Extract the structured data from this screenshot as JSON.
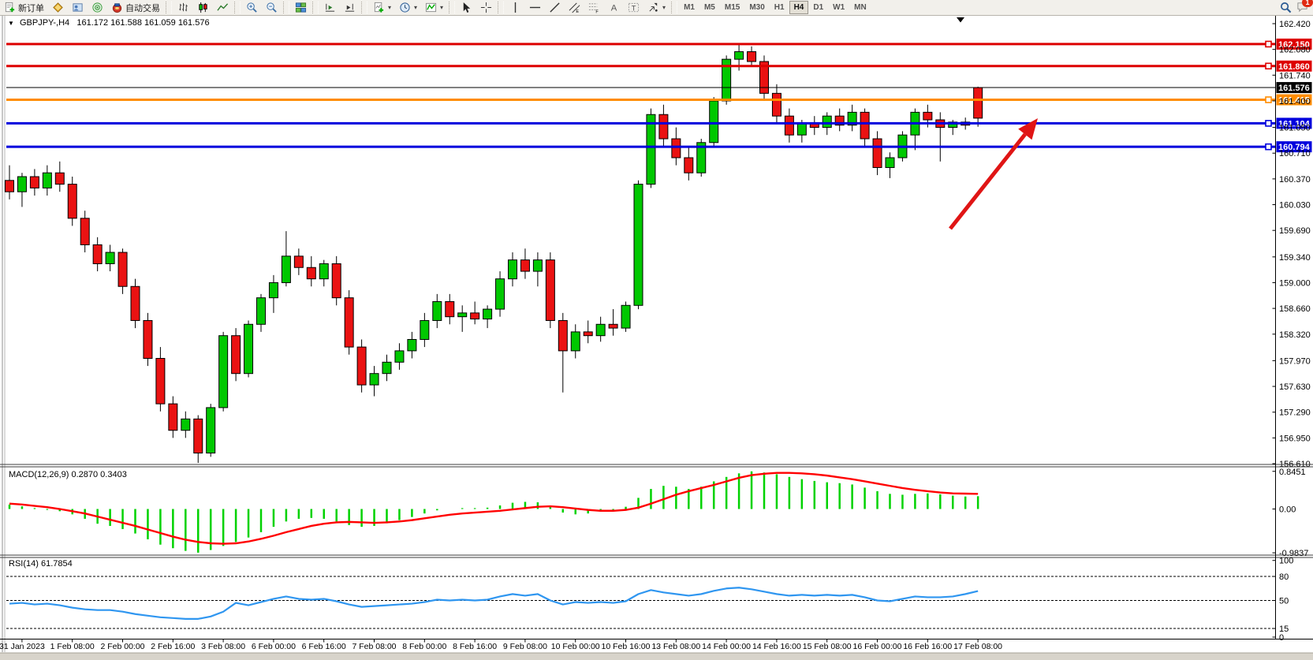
{
  "toolbar": {
    "new_order_label": "新订单",
    "autotrading_label": "自动交易",
    "timeframes": [
      "M1",
      "M5",
      "M15",
      "M30",
      "H1",
      "H4",
      "D1",
      "W1",
      "MN"
    ],
    "active_timeframe": "H4",
    "notification_count": "1"
  },
  "chart": {
    "symbol_period": "GBPJPY-,H4",
    "ohlc_text": "161.172 161.588 161.059 161.576",
    "open": "161.172",
    "high": "161.588",
    "low": "161.059",
    "close": "161.576"
  },
  "colors": {
    "candle_up": "#00c800",
    "candle_down": "#ea1212",
    "wick": "#000000",
    "background": "#ffffff",
    "toolbar_bg": "#f2f0eb",
    "arrow": "#e01515"
  },
  "chart_data": [
    {
      "type": "candlestick",
      "title": "GBPJPY-,H4",
      "x_labels": [
        "31 Jan 2023",
        "1 Feb 08:00",
        "2 Feb 00:00",
        "2 Feb 16:00",
        "3 Feb 08:00",
        "6 Feb 00:00",
        "6 Feb 16:00",
        "7 Feb 08:00",
        "8 Feb 00:00",
        "8 Feb 16:00",
        "9 Feb 08:00",
        "10 Feb 00:00",
        "10 Feb 16:00",
        "13 Feb 08:00",
        "14 Feb 00:00",
        "14 Feb 16:00",
        "15 Feb 08:00",
        "16 Feb 00:00",
        "16 Feb 16:00",
        "17 Feb 08:00"
      ],
      "y_ticks": [
        162.42,
        162.08,
        161.74,
        161.4,
        161.05,
        160.71,
        160.37,
        160.03,
        159.69,
        159.34,
        159.0,
        158.66,
        158.32,
        157.97,
        157.63,
        157.29,
        156.95,
        156.61
      ],
      "ylim": [
        156.59,
        162.5
      ],
      "grid": false,
      "candles": [
        [
          160.35,
          160.55,
          160.1,
          160.2
        ],
        [
          160.2,
          160.45,
          160.0,
          160.4
        ],
        [
          160.4,
          160.5,
          160.15,
          160.25
        ],
        [
          160.25,
          160.55,
          160.15,
          160.45
        ],
        [
          160.45,
          160.6,
          160.2,
          160.3
        ],
        [
          160.3,
          160.4,
          159.75,
          159.85
        ],
        [
          159.85,
          159.95,
          159.4,
          159.5
        ],
        [
          159.5,
          159.6,
          159.15,
          159.25
        ],
        [
          159.25,
          159.5,
          159.15,
          159.4
        ],
        [
          159.4,
          159.45,
          158.85,
          158.95
        ],
        [
          158.95,
          159.05,
          158.4,
          158.5
        ],
        [
          158.5,
          158.6,
          157.9,
          158.0
        ],
        [
          158.0,
          158.15,
          157.3,
          157.4
        ],
        [
          157.4,
          157.5,
          156.95,
          157.05
        ],
        [
          157.05,
          157.3,
          156.95,
          157.2
        ],
        [
          157.2,
          157.25,
          156.62,
          156.75
        ],
        [
          156.75,
          157.4,
          156.7,
          157.35
        ],
        [
          157.35,
          158.35,
          157.3,
          158.3
        ],
        [
          158.3,
          158.4,
          157.7,
          157.8
        ],
        [
          157.8,
          158.5,
          157.75,
          158.45
        ],
        [
          158.45,
          158.85,
          158.35,
          158.8
        ],
        [
          158.8,
          159.1,
          158.6,
          159.0
        ],
        [
          159.0,
          159.68,
          158.95,
          159.35
        ],
        [
          159.35,
          159.45,
          159.1,
          159.2
        ],
        [
          159.2,
          159.35,
          158.95,
          159.05
        ],
        [
          159.05,
          159.3,
          158.95,
          159.25
        ],
        [
          159.25,
          159.35,
          158.7,
          158.8
        ],
        [
          158.8,
          158.9,
          158.05,
          158.15
        ],
        [
          158.15,
          158.25,
          157.55,
          157.65
        ],
        [
          157.65,
          157.9,
          157.5,
          157.8
        ],
        [
          157.8,
          158.05,
          157.7,
          157.95
        ],
        [
          157.95,
          158.2,
          157.85,
          158.1
        ],
        [
          158.1,
          158.35,
          158.0,
          158.25
        ],
        [
          158.25,
          158.6,
          158.15,
          158.5
        ],
        [
          158.5,
          158.85,
          158.4,
          158.75
        ],
        [
          158.75,
          158.85,
          158.45,
          158.55
        ],
        [
          158.55,
          158.7,
          158.35,
          158.6
        ],
        [
          158.6,
          158.75,
          158.45,
          158.52
        ],
        [
          158.52,
          158.7,
          158.4,
          158.65
        ],
        [
          158.65,
          159.15,
          158.55,
          159.05
        ],
        [
          159.05,
          159.4,
          158.95,
          159.3
        ],
        [
          159.3,
          159.45,
          159.05,
          159.15
        ],
        [
          159.15,
          159.4,
          158.95,
          159.3
        ],
        [
          159.3,
          159.4,
          158.4,
          158.5
        ],
        [
          158.5,
          158.6,
          157.55,
          158.1
        ],
        [
          158.1,
          158.45,
          158.0,
          158.35
        ],
        [
          158.35,
          158.5,
          158.2,
          158.3
        ],
        [
          158.3,
          158.55,
          158.22,
          158.45
        ],
        [
          158.45,
          158.65,
          158.3,
          158.4
        ],
        [
          158.4,
          158.75,
          158.35,
          158.7
        ],
        [
          158.7,
          160.35,
          158.65,
          160.3
        ],
        [
          160.3,
          161.3,
          160.25,
          161.22
        ],
        [
          161.22,
          161.35,
          160.8,
          160.9
        ],
        [
          160.9,
          161.05,
          160.55,
          160.65
        ],
        [
          160.65,
          160.8,
          160.35,
          160.45
        ],
        [
          160.45,
          160.9,
          160.4,
          160.85
        ],
        [
          160.85,
          161.45,
          160.8,
          161.4
        ],
        [
          161.4,
          162.0,
          161.35,
          161.95
        ],
        [
          161.95,
          162.15,
          161.8,
          162.05
        ],
        [
          162.05,
          162.12,
          161.85,
          161.92
        ],
        [
          161.92,
          162.0,
          161.4,
          161.5
        ],
        [
          161.5,
          161.62,
          161.1,
          161.2
        ],
        [
          161.2,
          161.3,
          160.85,
          160.95
        ],
        [
          160.95,
          161.15,
          160.85,
          161.1
        ],
        [
          161.1,
          161.2,
          160.95,
          161.05
        ],
        [
          161.05,
          161.25,
          160.95,
          161.2
        ],
        [
          161.2,
          161.3,
          161.0,
          161.08
        ],
        [
          161.08,
          161.35,
          161.0,
          161.25
        ],
        [
          161.25,
          161.3,
          160.8,
          160.9
        ],
        [
          160.9,
          161.0,
          160.42,
          160.52
        ],
        [
          160.52,
          160.72,
          160.38,
          160.65
        ],
        [
          160.65,
          161.0,
          160.6,
          160.95
        ],
        [
          160.95,
          161.3,
          160.75,
          161.25
        ],
        [
          161.25,
          161.35,
          161.05,
          161.15
        ],
        [
          161.15,
          161.25,
          160.6,
          161.05
        ],
        [
          161.05,
          161.15,
          160.95,
          161.12
        ],
        [
          161.12,
          161.18,
          161.02,
          161.08
        ],
        [
          161.172,
          161.588,
          161.059,
          161.576
        ]
      ],
      "last_candle_rendered": "red",
      "levels": [
        {
          "label": "162.150",
          "value": 162.15,
          "color": "#dd0000",
          "width": 3
        },
        {
          "label": "161.860",
          "value": 161.86,
          "color": "#dd0000",
          "width": 3
        },
        {
          "label": "161.576",
          "value": 161.576,
          "color": "#000000",
          "width": 1,
          "role": "current-price"
        },
        {
          "label": "161.415",
          "value": 161.415,
          "color": "#ff8c00",
          "width": 3
        },
        {
          "label": "161.104",
          "value": 161.104,
          "color": "#0000dd",
          "width": 3
        },
        {
          "label": "160.794",
          "value": 160.794,
          "color": "#0000dd",
          "width": 3
        }
      ],
      "annotation": {
        "type": "arrow",
        "color": "#e01515",
        "from_xy": [
          1205,
          290
        ],
        "to_xy": [
          1316,
          150
        ]
      }
    },
    {
      "type": "bar",
      "title": "MACD(12,26,9) 0.2870 0.3403",
      "name": "MACD",
      "params": "12,26,9",
      "current_main": "0.2870",
      "current_signal": "0.3403",
      "y_ticks": [
        0.8451,
        0.0,
        -0.9837
      ],
      "y_tick_labels": [
        "0.8451",
        "0.00",
        "-0.9837"
      ],
      "hist_color": "#00d200",
      "signal_color": "#ff0000",
      "values": [
        0.1,
        0.06,
        0.02,
        -0.02,
        -0.05,
        -0.12,
        -0.22,
        -0.33,
        -0.38,
        -0.45,
        -0.55,
        -0.68,
        -0.8,
        -0.88,
        -0.94,
        -0.98,
        -0.92,
        -0.83,
        -0.74,
        -0.64,
        -0.52,
        -0.4,
        -0.28,
        -0.22,
        -0.2,
        -0.22,
        -0.28,
        -0.36,
        -0.4,
        -0.38,
        -0.32,
        -0.25,
        -0.18,
        -0.1,
        -0.03,
        0.0,
        0.02,
        0.02,
        0.03,
        0.08,
        0.14,
        0.16,
        0.15,
        0.05,
        -0.08,
        -0.12,
        -0.1,
        -0.06,
        -0.02,
        0.05,
        0.25,
        0.45,
        0.52,
        0.5,
        0.45,
        0.5,
        0.62,
        0.72,
        0.8,
        0.845,
        0.82,
        0.78,
        0.72,
        0.67,
        0.63,
        0.6,
        0.58,
        0.55,
        0.48,
        0.4,
        0.34,
        0.32,
        0.34,
        0.35,
        0.33,
        0.3,
        0.28,
        0.287
      ],
      "signal": [
        0.12,
        0.1,
        0.07,
        0.04,
        0.0,
        -0.05,
        -0.1,
        -0.17,
        -0.24,
        -0.31,
        -0.38,
        -0.46,
        -0.54,
        -0.62,
        -0.69,
        -0.74,
        -0.77,
        -0.78,
        -0.77,
        -0.73,
        -0.67,
        -0.6,
        -0.52,
        -0.45,
        -0.38,
        -0.33,
        -0.3,
        -0.29,
        -0.3,
        -0.31,
        -0.3,
        -0.28,
        -0.25,
        -0.21,
        -0.17,
        -0.13,
        -0.1,
        -0.08,
        -0.06,
        -0.04,
        -0.01,
        0.02,
        0.05,
        0.06,
        0.04,
        0.01,
        -0.02,
        -0.04,
        -0.04,
        -0.02,
        0.03,
        0.12,
        0.22,
        0.32,
        0.4,
        0.47,
        0.54,
        0.62,
        0.7,
        0.76,
        0.79,
        0.81,
        0.81,
        0.8,
        0.78,
        0.75,
        0.71,
        0.67,
        0.62,
        0.57,
        0.52,
        0.47,
        0.43,
        0.4,
        0.37,
        0.35,
        0.345,
        0.3403
      ]
    },
    {
      "type": "line",
      "title": "RSI(14) 61.7854",
      "name": "RSI",
      "period": 14,
      "current": "61.7854",
      "y_ticks": [
        100,
        80,
        50,
        15,
        0
      ],
      "y_tick_labels": [
        "100",
        "80",
        "50",
        "15",
        "0"
      ],
      "dashed_levels": [
        80,
        50,
        15
      ],
      "line_color": "#2f96f0",
      "values": [
        46,
        47,
        45,
        46,
        44,
        41,
        39,
        38,
        38,
        36,
        33,
        31,
        29,
        28,
        27,
        27,
        30,
        36,
        47,
        44,
        48,
        52,
        55,
        52,
        51,
        52,
        49,
        45,
        42,
        43,
        44,
        45,
        46,
        48,
        51,
        50,
        51,
        50,
        51,
        55,
        58,
        56,
        58,
        50,
        45,
        48,
        47,
        48,
        47,
        49,
        58,
        63,
        60,
        58,
        56,
        58,
        62,
        65,
        66,
        64,
        61,
        58,
        56,
        57,
        56,
        57,
        56,
        57,
        54,
        50,
        49,
        52,
        55,
        54,
        54,
        55,
        58,
        61.7854
      ]
    }
  ]
}
